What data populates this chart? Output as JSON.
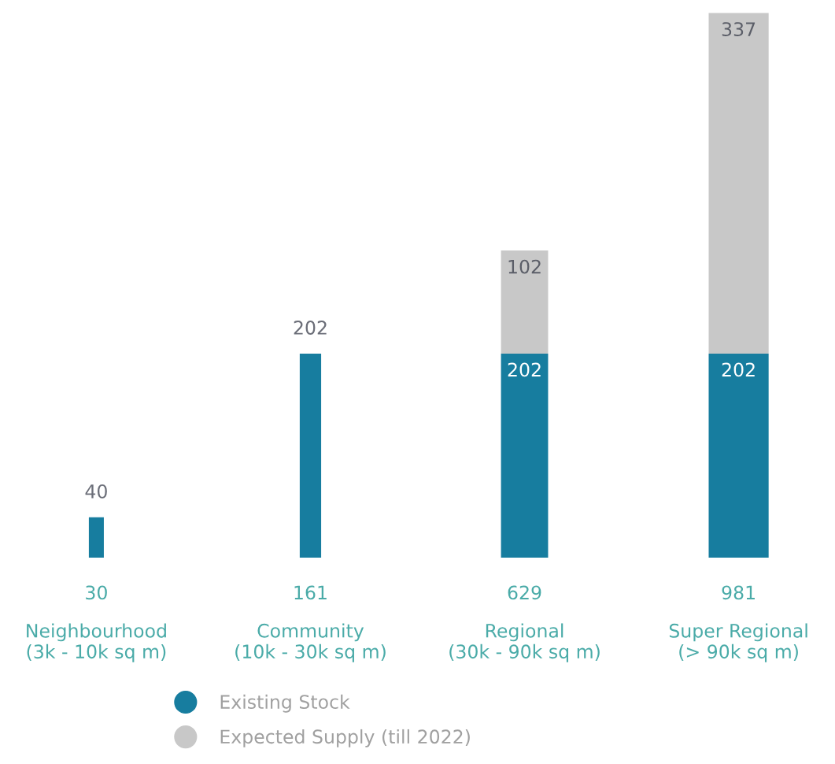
{
  "chart_data": {
    "type": "bar",
    "stacked": true,
    "categories": [
      "Neighbourhood\n(3k - 10k sq m)",
      "Community\n(10k - 30k sq m)",
      "Regional\n(30k - 90k sq m)",
      "Super Regional\n(> 90k sq m)"
    ],
    "series": [
      {
        "name": "Existing Stock",
        "color": "#177d9f",
        "values": [
          40,
          202,
          202,
          202
        ]
      },
      {
        "name": "Expected Supply (till 2022)",
        "color": "#c8c8c8",
        "values": [
          null,
          null,
          102,
          337
        ]
      }
    ],
    "data_labels": true,
    "tick_labels": "x",
    "annotations": [
      "30",
      "161",
      "629",
      "981"
    ],
    "legend": "bottom",
    "grid": false
  }
}
